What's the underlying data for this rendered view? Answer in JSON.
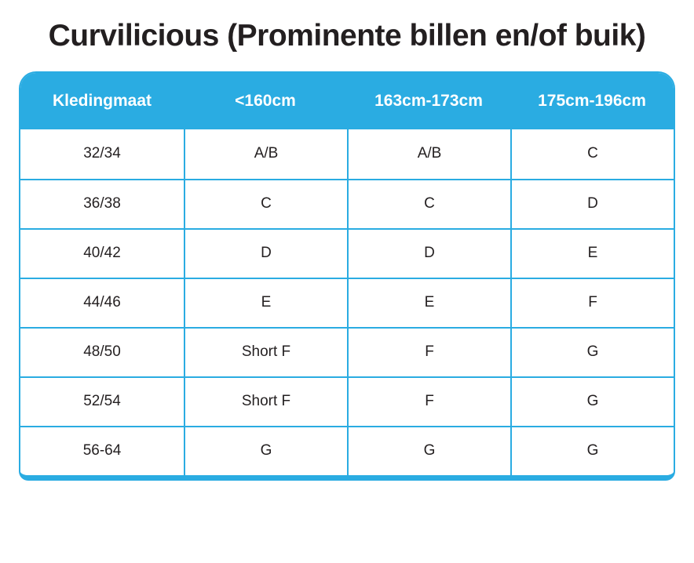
{
  "title": "Curvilicious (Prominente billen en/of buik)",
  "colors": {
    "accent": "#2AACE2",
    "header_text": "#FFFFFF",
    "body_text": "#231F20"
  },
  "table": {
    "columns": [
      "Kledingmaat",
      "<160cm",
      "163cm-173cm",
      "175cm-196cm"
    ],
    "rows": [
      [
        "32/34",
        "A/B",
        "A/B",
        "C"
      ],
      [
        "36/38",
        "C",
        "C",
        "D"
      ],
      [
        "40/42",
        "D",
        "D",
        "E"
      ],
      [
        "44/46",
        "E",
        "E",
        "F"
      ],
      [
        "48/50",
        "Short F",
        "F",
        "G"
      ],
      [
        "52/54",
        "Short F",
        "F",
        "G"
      ],
      [
        "56-64",
        "G",
        "G",
        "G"
      ]
    ]
  }
}
